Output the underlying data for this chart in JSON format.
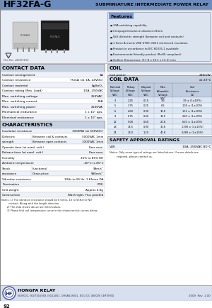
{
  "title": "HF32FA-G",
  "subtitle": "SUBMINIATURE INTERMEDIATE POWER RELAY",
  "header_bg": "#6b8cbf",
  "section_bg": "#c5d0e0",
  "light_bg": "#e8ecf4",
  "white_bg": "#ffffff",
  "page_bg": "#f2f4f8",
  "features": [
    "10A switching capability",
    "Creepage/clearance distance>8mm",
    "5kV dielectric strength (between coil and contacts)",
    "1 Form A meets VDE 0700, 0631 reinforced insulation",
    "Product in accordance to IEC 60335-1 available",
    "Environmental friendly product (RoHS compliant)",
    "Outline Dimensions: (17.8 x 10.1 x 12.3) mm"
  ],
  "contact_data_rows": [
    [
      "Contact arrangement",
      "1A"
    ],
    [
      "Contact resistance",
      "75mΩ (at 1A, 24VDC)"
    ],
    [
      "Contact material",
      "AgSnO₂"
    ],
    [
      "Contact rating (Res. Load)",
      "10A, 250VAC"
    ],
    [
      "Max. switching voltage",
      "250VAC"
    ],
    [
      "Max. switching current",
      "10A"
    ],
    [
      "Max. switching power",
      "2500VA"
    ],
    [
      "Mechanical endurance",
      "1 x 10⁷ ops."
    ],
    [
      "Electrical endurance",
      "1 x 10⁵ ops."
    ]
  ],
  "coil_power": "230mW",
  "coil_data_headers": [
    "Nominal\nVoltage\nVDC",
    "Pickup\nVoltage\nVDC",
    "Dropout\nVoltage\nVDC",
    "Max.\nAllowable\nVoltage\nVDC",
    "Coil\nResistance\n(Ω)"
  ],
  "coil_data_rows": [
    [
      "3",
      "2.25",
      "0.15",
      "3.6",
      "39 ± (1±10%)"
    ],
    [
      "5",
      "3.75",
      "0.25",
      "6.5",
      "105 ± (1±10%)"
    ],
    [
      "6",
      "4.50",
      "0.30",
      "10.0",
      "151 ± (1±10%)"
    ],
    [
      "9",
      "6.75",
      "0.45",
      "13.5",
      "260 ± (1±10%)"
    ],
    [
      "12",
      "9.00",
      "0.60",
      "20.8",
      "620 ± (1±10%)"
    ],
    [
      "18",
      "13.5",
      "0.90",
      "30.6",
      "1390 ± (1±10%)"
    ],
    [
      "24",
      "18.0",
      "1.20",
      "40.8",
      "2480 ± (1±10%)"
    ]
  ],
  "at_temp": "at 23°C",
  "characteristics_rows": [
    [
      "Insulation resistance",
      "",
      "1000MΩ (at 500VDC)"
    ],
    [
      "Dielectric",
      "Between coil & contacts",
      "5000VAC 1min"
    ],
    [
      "strength",
      "Between open contacts",
      "1000VAC 1min"
    ],
    [
      "Operate time (at noml. volt.)",
      "",
      "8ms max."
    ],
    [
      "Release time (at noml. volt.)",
      "",
      "8ms max."
    ],
    [
      "Humidity",
      "",
      "35% to 85% RH"
    ],
    [
      "Ambient temperature",
      "",
      "-40°C to 85°C"
    ],
    [
      "Shock",
      "Functional",
      "98m/s²"
    ],
    [
      "resistance",
      "Destructive",
      "980m/s²"
    ],
    [
      "Vibration resistance",
      "",
      "10Hz to 55 Hz, 1.65mm DA"
    ],
    [
      "Termination",
      "",
      "PCB"
    ],
    [
      "Unit weight",
      "",
      "Approx 4.8g"
    ],
    [
      "Construction",
      "",
      "Wash tight, Flux proofed"
    ]
  ],
  "char_notes": [
    "Notes: 1) The vibration resistance should be 8 times, 10 to 55Hz for NO",
    "         contact. Along with the length direction.",
    "       2) The data shown above are initial values.",
    "       3) Please find coil temperature curve in the characteristic curves below."
  ],
  "safety_title": "SAFETY APPROVAL RATINGS",
  "safety_col1": "VDE",
  "safety_col2": "10A, 250VAC 85°C",
  "safety_note": "Notes: Only some typical ratings are listed above. If more details are\n         required, please contact us.",
  "file_no": "File No. d000f192",
  "page_num": "92",
  "company": "HONGFA RELAY",
  "certifications": "ISO9001, ISO/TS16949, ISO14001, OHSAS18001, IECQ QC 080000 CERTIFIED",
  "year_rev": "2009  Rev. 1.00"
}
